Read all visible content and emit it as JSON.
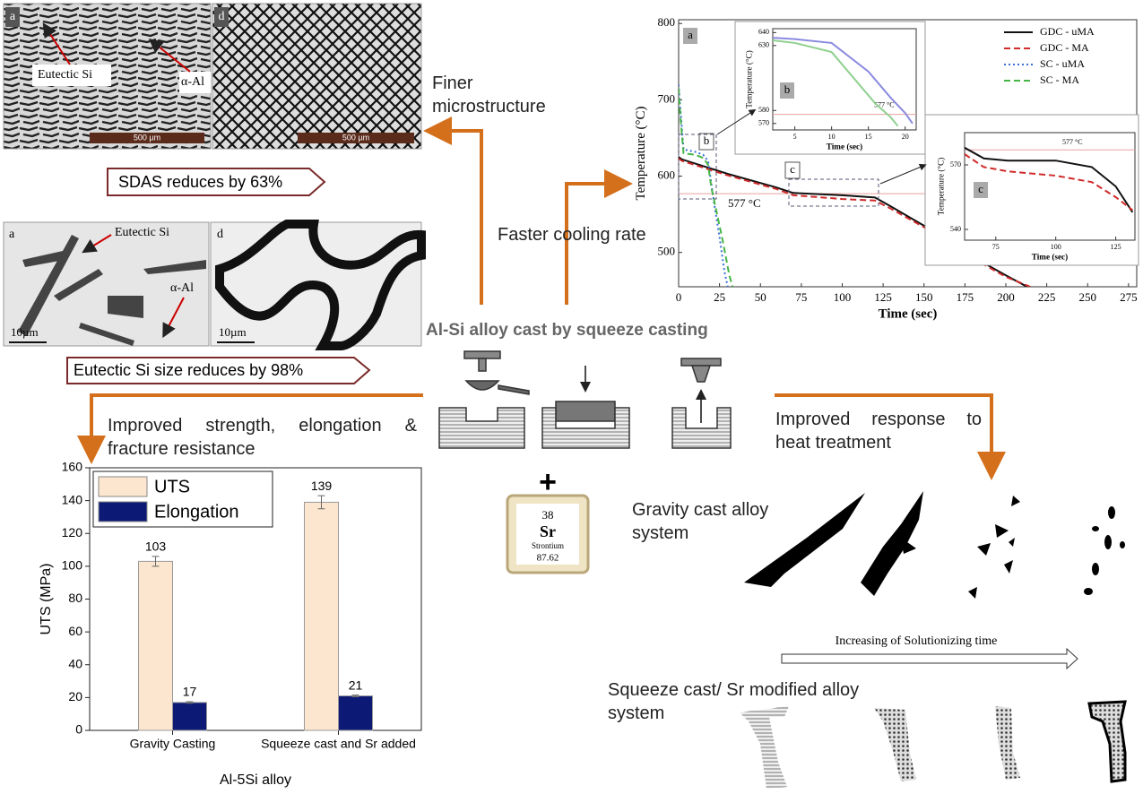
{
  "diagram": {
    "micrographs": {
      "top_left": {
        "panel": "a",
        "label_1": "Eutectic Si",
        "label_2": "α-Al",
        "scale": "500 µm"
      },
      "top_right": {
        "panel": "d",
        "scale": "500 µm"
      },
      "bottom_left": {
        "panel": "a",
        "label_1": "Eutectic Si",
        "label_2": "α-Al",
        "scale": "10µm"
      },
      "bottom_right": {
        "panel": "d",
        "scale": "10µm"
      }
    },
    "finer": "Finer microstructure",
    "sdas": "SDAS reduces by 63%",
    "eutectic": "Eutectic Si size reduces by 98%",
    "cooling": "Faster cooling rate",
    "process": "Al-Si alloy cast by squeeze casting",
    "strength": "Improved strength, elongation & fracture resistance",
    "heat": "Improved response to heat treatment",
    "plus": "+",
    "element": {
      "number": "38",
      "symbol": "Sr",
      "name": "Strontium",
      "mass": "87.62"
    },
    "gravity_system": "Gravity cast alloy system",
    "solution_time": "Increasing of Solutionizing time",
    "squeeze_system": "Squeeze cast/ Sr modified alloy system"
  },
  "chart_data": [
    {
      "type": "bar",
      "ylabel": "UTS (MPa)",
      "xlabel": "Al-5Si alloy",
      "categories": [
        "Gravity Casting",
        "Squeeze cast and Sr added"
      ],
      "series": [
        {
          "name": "UTS",
          "color": "#fde6cf",
          "values": [
            103,
            139
          ],
          "errors": [
            3,
            4
          ]
        },
        {
          "name": "Elongation",
          "color": "#0d1a75",
          "values": [
            17,
            21
          ],
          "errors": [
            0.5,
            0.5
          ]
        }
      ],
      "ylim": [
        0,
        160
      ],
      "yticks": [
        0,
        20,
        40,
        60,
        80,
        100,
        120,
        140,
        160
      ],
      "legend": "upper left"
    },
    {
      "type": "line",
      "xlabel": "Time (sec)",
      "ylabel": "Temperature (°C)",
      "panel_labels": [
        "a",
        "b",
        "c"
      ],
      "reference": 577,
      "reference_label": "577 °C",
      "series": [
        {
          "name": "GDC - uMA",
          "color": "#111111",
          "dash": "solid",
          "x": [
            0,
            2,
            30,
            60,
            70,
            100,
            120,
            130,
            150,
            175,
            200,
            213
          ],
          "values": [
            625,
            622,
            603,
            585,
            578,
            575,
            572,
            560,
            535,
            500,
            470,
            455
          ]
        },
        {
          "name": "GDC - MA",
          "color": "#d12b2b",
          "dash": "dashed",
          "x": [
            0,
            2,
            30,
            60,
            70,
            100,
            120,
            130,
            150,
            175,
            200,
            215
          ],
          "values": [
            623,
            620,
            601,
            583,
            575,
            570,
            568,
            557,
            533,
            498,
            468,
            455
          ]
        },
        {
          "name": "SC - uMA",
          "color": "#3a6fd8",
          "dash": "dotted",
          "x": [
            0,
            1,
            3,
            10,
            15,
            18,
            20,
            22,
            25,
            28,
            30
          ],
          "values": [
            720,
            690,
            635,
            632,
            628,
            620,
            590,
            560,
            520,
            475,
            455
          ]
        },
        {
          "name": "SC - MA",
          "color": "#45b545",
          "dash": "dashed",
          "x": [
            0,
            1,
            3,
            10,
            15,
            18,
            20,
            23,
            27,
            31,
            33
          ],
          "values": [
            715,
            680,
            630,
            628,
            624,
            615,
            585,
            555,
            515,
            470,
            455
          ]
        }
      ],
      "xlim": [
        0,
        280
      ],
      "xticks": [
        0,
        25,
        50,
        75,
        100,
        125,
        150,
        175,
        200,
        225,
        250,
        275
      ],
      "ylim": [
        455,
        805
      ],
      "yticks": [
        500,
        600,
        700,
        800
      ],
      "legend": "upper right"
    },
    {
      "type": "line",
      "xlabel": "Time (sec)",
      "ylabel": "Temperature (°C)",
      "panel_labels": [
        "b"
      ],
      "reference": 577,
      "reference_label": "577 °C",
      "series": [
        {
          "name": "SC - uMA",
          "color": "#8a8ae0",
          "dash": "solid",
          "x": [
            2,
            5,
            10,
            15,
            18,
            20,
            21
          ],
          "values": [
            636,
            635,
            632,
            610,
            590,
            578,
            570
          ]
        },
        {
          "name": "SC - MA",
          "color": "#8fd08f",
          "dash": "solid",
          "x": [
            2,
            5,
            10,
            13,
            16,
            18,
            19
          ],
          "values": [
            634,
            632,
            625,
            605,
            585,
            575,
            568
          ]
        }
      ],
      "xlim": [
        2,
        21.5
      ],
      "xticks": [
        5,
        10,
        15,
        20
      ],
      "ylim": [
        565,
        643
      ],
      "yticks": [
        570,
        580,
        630,
        640
      ]
    },
    {
      "type": "line",
      "xlabel": "Time (sec)",
      "ylabel": "Temperature (°C)",
      "panel_labels": [
        "c"
      ],
      "reference": 577,
      "reference_label": "577 °C",
      "series": [
        {
          "name": "GDC - uMA",
          "color": "#111111",
          "dash": "solid",
          "x": [
            62,
            70,
            80,
            100,
            115,
            125,
            132
          ],
          "values": [
            578,
            573,
            572,
            572,
            569,
            560,
            548
          ]
        },
        {
          "name": "GDC - MA",
          "color": "#d12b2b",
          "dash": "dashed",
          "x": [
            62,
            70,
            80,
            100,
            115,
            125,
            132
          ],
          "values": [
            575,
            569,
            567,
            565,
            562,
            555,
            549
          ]
        }
      ],
      "xlim": [
        62,
        133
      ],
      "xticks": [
        75,
        100,
        125
      ],
      "ylim": [
        535,
        585
      ],
      "yticks": [
        540,
        570
      ]
    }
  ]
}
